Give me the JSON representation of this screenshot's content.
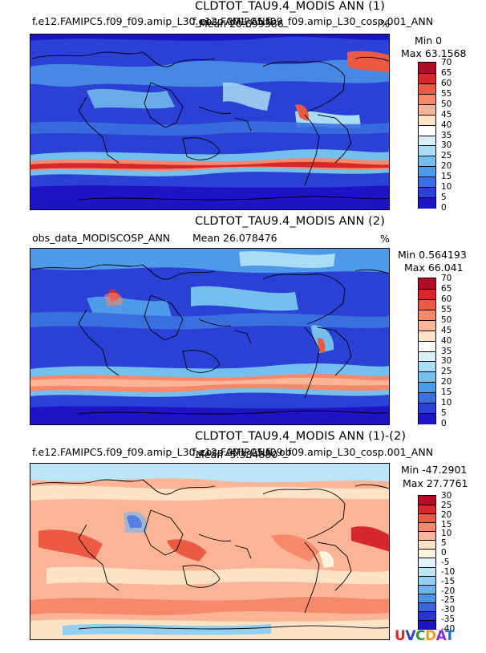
{
  "chart_data": [
    {
      "type": "heatmap",
      "title": "CLDTOT_TAU9.4_MODIS ANN (1)",
      "case_label": "f.e12.FAMIPC5.f09_f09.amip_L30_cosp.001_ANN",
      "case_label_overlap": "f.e12.FAMIPC5.f09_f09.amip_L30_cosp.001_ANN",
      "mean_text": "Mean 20.699386",
      "units": "%",
      "min_text": "Min 0",
      "max_text": "Max 63.1568",
      "colorbar_levels": [
        "70",
        "65",
        "60",
        "55",
        "50",
        "45",
        "40",
        "35",
        "30",
        "25",
        "20",
        "15",
        "10",
        "5",
        "0"
      ],
      "colorbar_colors": [
        "#b10d24",
        "#d6282c",
        "#ec5a43",
        "#f5896a",
        "#fbb596",
        "#fde3c6",
        "#ffffff",
        "#d9f0f8",
        "#a9dcf6",
        "#75bfee",
        "#4f9ae8",
        "#3a6fe0",
        "#2b40d4",
        "#1d14c6"
      ]
    },
    {
      "type": "heatmap",
      "title": "CLDTOT_TAU9.4_MODIS ANN (2)",
      "case_label": "obs_data_MODISCOSP_ANN",
      "mean_text": "Mean 26.078476",
      "units": "%",
      "min_text": "Min 0.564193",
      "max_text": "Max 66.041",
      "colorbar_levels": [
        "70",
        "65",
        "60",
        "55",
        "50",
        "45",
        "40",
        "35",
        "30",
        "25",
        "20",
        "15",
        "10",
        "5",
        "0"
      ],
      "colorbar_colors": [
        "#b10d24",
        "#d6282c",
        "#ec5a43",
        "#f5896a",
        "#fbb596",
        "#fde3c6",
        "#ffffff",
        "#d9f0f8",
        "#a9dcf6",
        "#75bfee",
        "#4f9ae8",
        "#3a6fe0",
        "#2b40d4",
        "#1d14c6"
      ]
    },
    {
      "type": "heatmap",
      "title": "CLDTOT_TAU9.4_MODIS ANN (1)-(2)",
      "case_label": "f.e12.FAMIPC5.f09_f09.amip_L30_cosp.001_ANN, ob",
      "case_label_overlap": "f.e12.FAMIPC5.f09_f09.amip_L30_cosp.001_ANN",
      "mean_text": "Mean -5.384880",
      "units": "",
      "min_text": "Min -47.2901",
      "max_text": "Max 27.7761",
      "colorbar_levels": [
        "30",
        "25",
        "20",
        "15",
        "10",
        "5",
        "0",
        "-5",
        "-10",
        "-15",
        "-20",
        "-25",
        "-30",
        "-35",
        "-40"
      ],
      "colorbar_colors": [
        "#b10d24",
        "#d6282c",
        "#ec5a43",
        "#f5896a",
        "#fbb596",
        "#fde3c6",
        "#fff4de",
        "#e1f3fb",
        "#bde5f8",
        "#92d0f3",
        "#6cb4ee",
        "#4f93e6",
        "#3a67dc",
        "#2b36d0",
        "#1d14c6"
      ]
    }
  ],
  "logo": {
    "letters": [
      "U",
      "V",
      "C",
      "D",
      "A",
      "T"
    ],
    "colors": [
      "#d8262c",
      "#2b40d4",
      "#2b8f3a",
      "#e8a21c",
      "#8a2bd4",
      "#1d6fe0"
    ]
  }
}
